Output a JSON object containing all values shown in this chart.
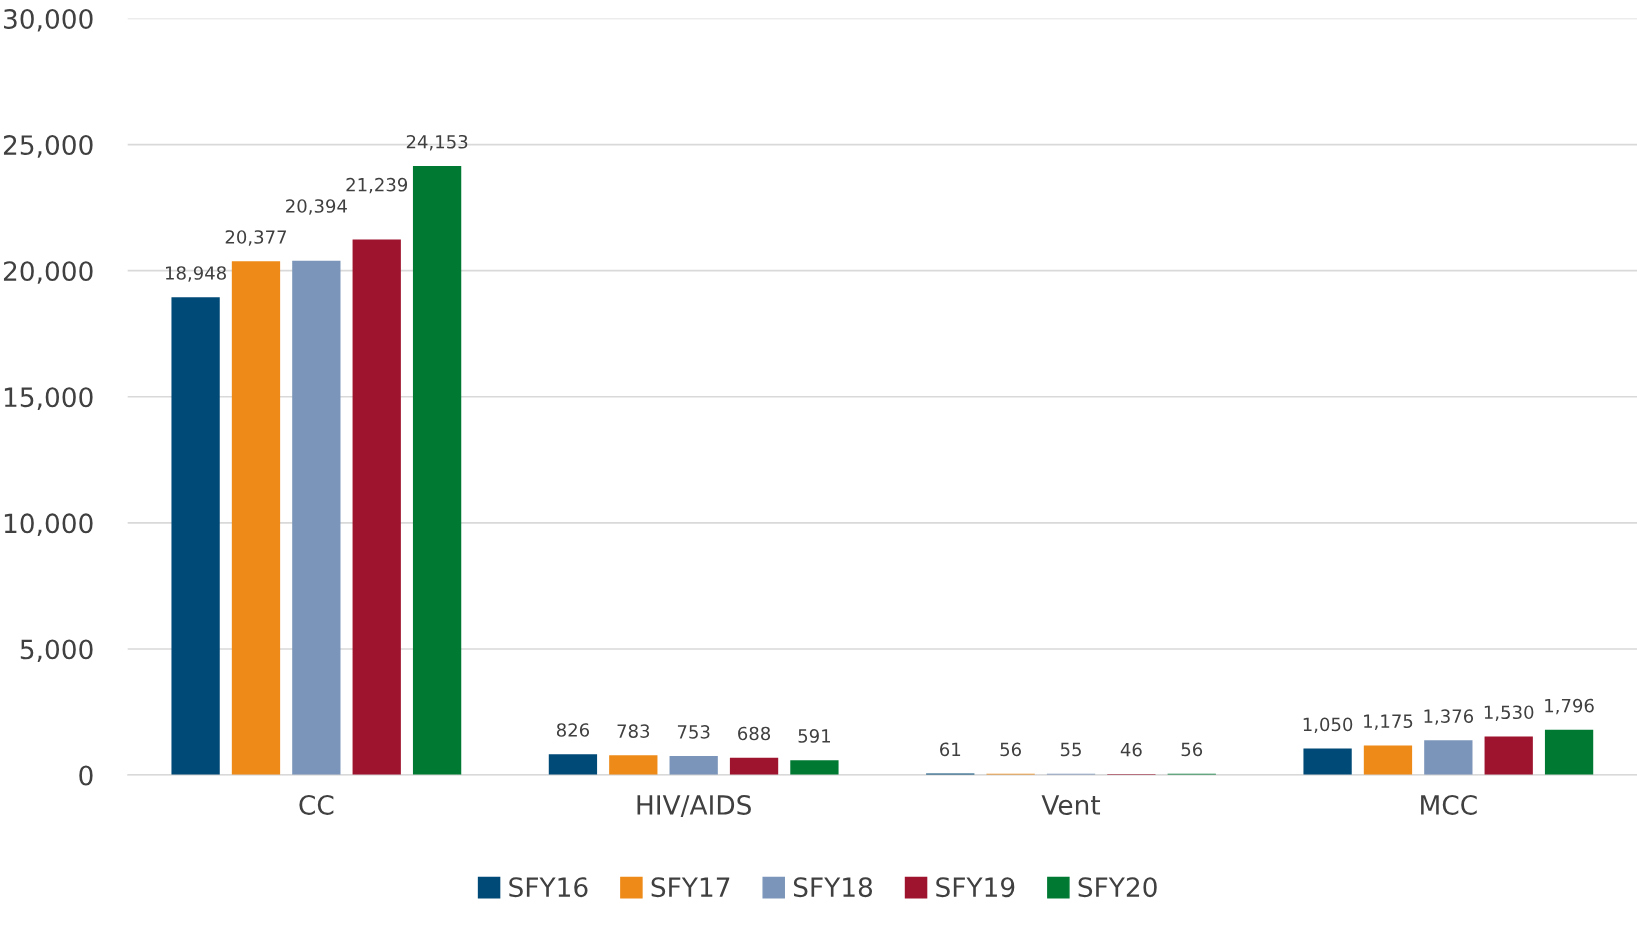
{
  "chart_data": {
    "type": "bar",
    "categories": [
      "CC",
      "HIV/AIDS",
      "Vent",
      "MCC"
    ],
    "series": [
      {
        "name": "SFY16",
        "color": "#004a77",
        "values": [
          18948,
          826,
          61,
          1050
        ],
        "value_labels": [
          "18,948",
          "826",
          "61",
          "1,050"
        ]
      },
      {
        "name": "SFY17",
        "color": "#ee8a18",
        "values": [
          20377,
          783,
          56,
          1175
        ],
        "value_labels": [
          "20,377",
          "783",
          "56",
          "1,175"
        ]
      },
      {
        "name": "SFY18",
        "color": "#7b95ba",
        "values": [
          20394,
          753,
          55,
          1376
        ],
        "value_labels": [
          "20,394",
          "753",
          "55",
          "1,376"
        ]
      },
      {
        "name": "SFY19",
        "color": "#9e132d",
        "values": [
          21239,
          688,
          46,
          1530
        ],
        "value_labels": [
          "21,239",
          "688",
          "46",
          "1,530"
        ]
      },
      {
        "name": "SFY20",
        "color": "#007a33",
        "values": [
          24153,
          591,
          56,
          1796
        ],
        "value_labels": [
          "24,153",
          "591",
          "56",
          "1,796"
        ]
      }
    ],
    "ylim": [
      0,
      30000
    ],
    "yticks": [
      0,
      {
        "value": 5000,
        "label": "5,000"
      },
      {
        "value": 10000,
        "label": "10,000"
      },
      {
        "value": 15000,
        "label": "15,000"
      },
      {
        "value": 20000,
        "label": "20,000"
      },
      {
        "value": 25000,
        "label": "25,000"
      },
      {
        "value": 30000,
        "label": "30,000"
      }
    ],
    "grid": "y",
    "legend": "bottom"
  }
}
